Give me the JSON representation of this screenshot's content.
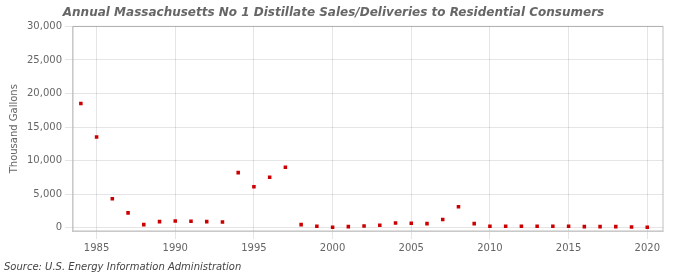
{
  "chart_data": {
    "type": "scatter",
    "title": "Annual Massachusetts No 1 Distillate Sales/Deliveries to Residential Consumers",
    "ylabel": "Thousand Gallons",
    "annotation": "Source: U.S. Energy Information Administration",
    "x": [
      1984,
      1985,
      1986,
      1987,
      1988,
      1989,
      1990,
      1991,
      1992,
      1993,
      1994,
      1995,
      1996,
      1997,
      1998,
      1999,
      2000,
      2001,
      2002,
      2003,
      2004,
      2005,
      2006,
      2007,
      2008,
      2009,
      2010,
      2011,
      2012,
      2013,
      2014,
      2015,
      2016,
      2017,
      2018,
      2019,
      2020
    ],
    "values": [
      18500,
      13500,
      4300,
      2200,
      450,
      900,
      1000,
      950,
      900,
      850,
      8200,
      6100,
      7500,
      9000,
      450,
      200,
      50,
      150,
      250,
      350,
      700,
      650,
      600,
      1200,
      3100,
      600,
      200,
      200,
      200,
      200,
      200,
      200,
      150,
      150,
      150,
      100,
      50
    ],
    "color": "#cc0000",
    "marker": "square",
    "grid": true,
    "xlim": [
      1983.5,
      2021
    ],
    "xticks": [
      1985,
      1990,
      1995,
      2000,
      2005,
      2010,
      2015,
      2020
    ],
    "ylim": [
      -500,
      30000
    ],
    "yticks": [
      0,
      {
        "value": 5000,
        "label": "5,000"
      },
      {
        "value": 10000,
        "label": "10,000"
      },
      {
        "value": 15000,
        "label": "15,000"
      },
      {
        "value": 20000,
        "label": "20,000"
      },
      {
        "value": 25000,
        "label": "25,000"
      },
      {
        "value": 30000,
        "label": "30,000"
      }
    ]
  }
}
